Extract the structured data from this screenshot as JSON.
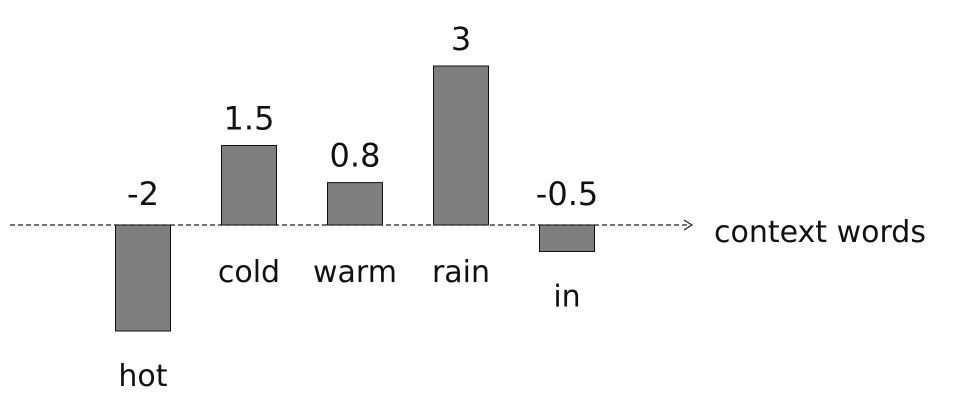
{
  "chart_data": {
    "type": "bar",
    "categories": [
      "hot",
      "cold",
      "warm",
      "rain",
      "in"
    ],
    "values": [
      -2,
      1.5,
      0.8,
      3,
      -0.5
    ],
    "data_labels": [
      "-2",
      "1.5",
      "0.8",
      "3",
      "-0.5"
    ],
    "xlabel": "context words",
    "ylim": [
      -2.3,
      3.6
    ],
    "grid": false,
    "legend": "none",
    "colors": {
      "bar_fill": "#7f7f7f",
      "bar_stroke": "#111111",
      "axis": "#222222",
      "text": "#111111"
    }
  }
}
